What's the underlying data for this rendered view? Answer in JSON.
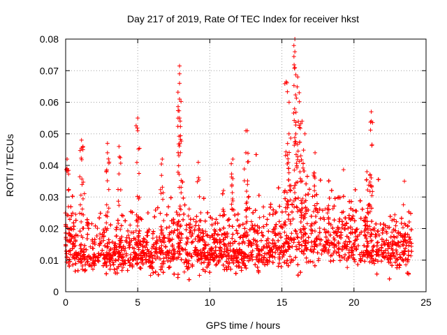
{
  "chart_data": {
    "type": "scatter",
    "title": "Day 217 of 2019, Rate Of TEC Index for receiver hkst",
    "xlabel": "GPS time / hours",
    "ylabel": "ROTI / TECUs",
    "xlim": [
      0,
      24
    ],
    "ylim": [
      0,
      0.08
    ],
    "x_ticks": [
      "0",
      "5",
      "10",
      "15",
      "20",
      "25"
    ],
    "y_ticks": [
      "0",
      "0.01",
      "0.02",
      "0.03",
      "0.04",
      "0.05",
      "0.06",
      "0.07",
      "0.08"
    ],
    "grid": true,
    "marker": "+",
    "colors": {
      "series": "#ff0000",
      "grid": "#a0a0a0",
      "axes": "#000000"
    },
    "series": [
      {
        "name": "ROTI",
        "baseline_profile": {
          "x": [
            0,
            1,
            2,
            3,
            4,
            5,
            6,
            7,
            8,
            9,
            10,
            11,
            12,
            13,
            14,
            15,
            15.5,
            16,
            16.5,
            17,
            18,
            19,
            20,
            21,
            22,
            23,
            24
          ],
          "mean": [
            0.014,
            0.012,
            0.012,
            0.012,
            0.012,
            0.012,
            0.013,
            0.013,
            0.014,
            0.013,
            0.013,
            0.014,
            0.012,
            0.013,
            0.013,
            0.015,
            0.018,
            0.02,
            0.019,
            0.017,
            0.016,
            0.016,
            0.015,
            0.014,
            0.014,
            0.013,
            0.013
          ],
          "spread": [
            0.008,
            0.006,
            0.006,
            0.006,
            0.006,
            0.006,
            0.007,
            0.008,
            0.008,
            0.007,
            0.007,
            0.007,
            0.006,
            0.007,
            0.007,
            0.009,
            0.012,
            0.013,
            0.012,
            0.01,
            0.009,
            0.009,
            0.008,
            0.008,
            0.007,
            0.007,
            0.007
          ]
        },
        "peaks": [
          {
            "x": 0.1,
            "y": 0.042
          },
          {
            "x": 0.1,
            "y": 0.039
          },
          {
            "x": 1.1,
            "y": 0.048
          },
          {
            "x": 1.2,
            "y": 0.046
          },
          {
            "x": 2.9,
            "y": 0.047
          },
          {
            "x": 2.9,
            "y": 0.044
          },
          {
            "x": 3.7,
            "y": 0.046
          },
          {
            "x": 5.0,
            "y": 0.055
          },
          {
            "x": 5.0,
            "y": 0.051
          },
          {
            "x": 6.7,
            "y": 0.042
          },
          {
            "x": 7.9,
            "y": 0.0715
          },
          {
            "x": 7.9,
            "y": 0.069
          },
          {
            "x": 7.9,
            "y": 0.066
          },
          {
            "x": 7.9,
            "y": 0.061
          },
          {
            "x": 7.9,
            "y": 0.055
          },
          {
            "x": 9.2,
            "y": 0.041
          },
          {
            "x": 11.6,
            "y": 0.042
          },
          {
            "x": 12.6,
            "y": 0.051
          },
          {
            "x": 12.5,
            "y": 0.044
          },
          {
            "x": 15.3,
            "y": 0.0665
          },
          {
            "x": 15.5,
            "y": 0.06
          },
          {
            "x": 15.9,
            "y": 0.08
          },
          {
            "x": 15.9,
            "y": 0.076
          },
          {
            "x": 15.9,
            "y": 0.071
          },
          {
            "x": 16.1,
            "y": 0.068
          },
          {
            "x": 16.2,
            "y": 0.063
          },
          {
            "x": 16.4,
            "y": 0.054
          },
          {
            "x": 16.6,
            "y": 0.05
          },
          {
            "x": 17.3,
            "y": 0.044
          },
          {
            "x": 21.2,
            "y": 0.057
          },
          {
            "x": 21.2,
            "y": 0.054
          },
          {
            "x": 20.9,
            "y": 0.038
          },
          {
            "x": 23.5,
            "y": 0.035
          }
        ]
      }
    ]
  }
}
